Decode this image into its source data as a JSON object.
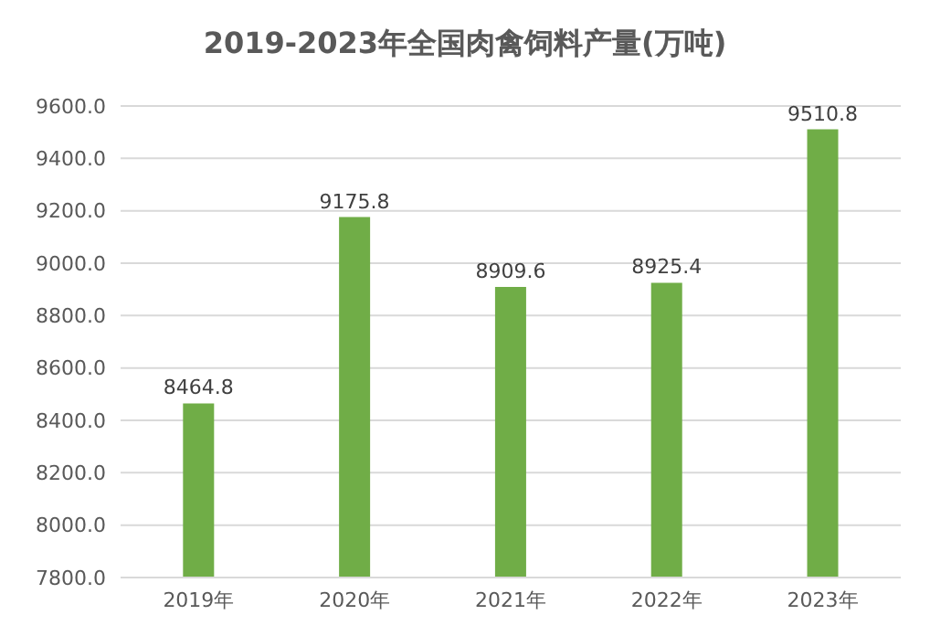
{
  "chart_data": {
    "type": "bar",
    "title": "2019-2023年全国肉禽饲料产量(万吨)",
    "categories": [
      "2019年",
      "2020年",
      "2021年",
      "2022年",
      "2023年"
    ],
    "values": [
      8464.8,
      9175.8,
      8909.6,
      8925.4,
      9510.8
    ],
    "color": "#70ad47",
    "ylim": [
      7800,
      9600
    ],
    "yticks": [
      {
        "value": 7800,
        "label": "7800.0"
      },
      {
        "value": 8000,
        "label": "8000.0"
      },
      {
        "value": 8200,
        "label": "8200.0"
      },
      {
        "value": 8400,
        "label": "8400.0"
      },
      {
        "value": 8600,
        "label": "8600.0"
      },
      {
        "value": 8800,
        "label": "8800.0"
      },
      {
        "value": 9000,
        "label": "9000.0"
      },
      {
        "value": 9200,
        "label": "9200.0"
      },
      {
        "value": 9400,
        "label": "9400.0"
      },
      {
        "value": 9600,
        "label": "9600.0"
      }
    ],
    "grid": "y",
    "data_labels": true
  }
}
